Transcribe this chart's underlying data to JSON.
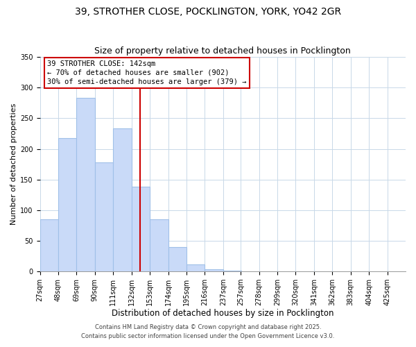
{
  "title": "39, STROTHER CLOSE, POCKLINGTON, YORK, YO42 2GR",
  "subtitle": "Size of property relative to detached houses in Pocklington",
  "xlabel": "Distribution of detached houses by size in Pocklington",
  "ylabel": "Number of detached properties",
  "bin_edges": [
    27,
    48,
    69,
    90,
    111,
    132,
    153,
    174,
    195,
    216,
    237,
    257,
    278,
    299,
    320,
    341,
    362,
    383,
    404,
    425,
    446
  ],
  "counts": [
    85,
    218,
    283,
    178,
    233,
    138,
    85,
    40,
    11,
    4,
    1,
    0,
    0,
    0,
    0,
    0,
    0,
    0,
    0,
    0
  ],
  "bar_color": "#c9daf8",
  "bar_edge_color": "#a0c0e8",
  "vline_x": 142,
  "vline_color": "#cc0000",
  "annotation_line1": "39 STROTHER CLOSE: 142sqm",
  "annotation_line2": "← 70% of detached houses are smaller (902)",
  "annotation_line3": "30% of semi-detached houses are larger (379) →",
  "annotation_box_color": "#cc0000",
  "annotation_fontsize": 7.5,
  "ylim": [
    0,
    350
  ],
  "yticks": [
    0,
    50,
    100,
    150,
    200,
    250,
    300,
    350
  ],
  "background_color": "#ffffff",
  "grid_color": "#c8d8e8",
  "footer_line1": "Contains HM Land Registry data © Crown copyright and database right 2025.",
  "footer_line2": "Contains public sector information licensed under the Open Government Licence v3.0.",
  "title_fontsize": 10,
  "subtitle_fontsize": 9,
  "xlabel_fontsize": 8.5,
  "ylabel_fontsize": 8,
  "tick_fontsize": 7,
  "footer_fontsize": 6
}
